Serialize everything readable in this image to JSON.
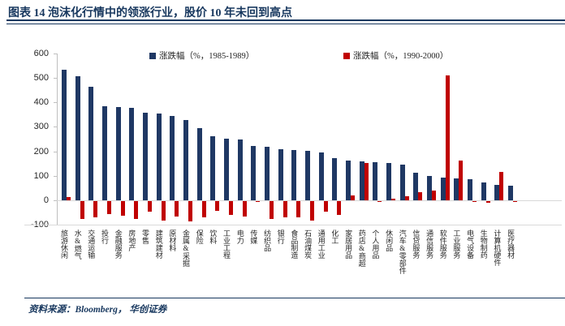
{
  "title": "图表 14  泡沫化行情中的领涨行业，股价 10 年未回到高点",
  "source": "资料来源：Bloomberg， 华创证券",
  "colors": {
    "series1": "#1f3864",
    "series2": "#c00000",
    "title_navy": "#17375e",
    "axis_gray": "#bfbfbf",
    "gridline_gray": "#d9d9d9",
    "text": "#262626"
  },
  "chart_data": {
    "type": "bar",
    "title": "",
    "xlabel": "",
    "ylabel": "",
    "ylim": [
      -100,
      600
    ],
    "yticks": [
      600,
      500,
      400,
      300,
      200,
      100,
      0,
      -100
    ],
    "grid": "zero-and-bottom-line-only",
    "legend_position": "top",
    "categories": [
      "旅游休闲",
      "水&燃气",
      "交通运输",
      "投行",
      "金融服务",
      "房地产",
      "零售",
      "建筑建材",
      "原材料",
      "金属&采掘",
      "保险",
      "饮料",
      "工业工程",
      "电力",
      "传媒",
      "纺织品",
      "银行",
      "食品制造",
      "石油煤炭",
      "通用工业",
      "化工",
      "家居用品",
      "药店&商超",
      "个人用品",
      "休闲品",
      "汽车&零部件",
      "信贷服务",
      "通信服务",
      "软件服务",
      "工业服务",
      "电气设备",
      "生物制药",
      "计算机硬件",
      "医疗器材"
    ],
    "series": [
      {
        "name": "涨跌幅（%，1985-1989）",
        "color": "#1f3864",
        "values": [
          533,
          507,
          463,
          386,
          382,
          379,
          358,
          356,
          344,
          328,
          296,
          262,
          253,
          247,
          223,
          217,
          208,
          206,
          203,
          197,
          171,
          163,
          160,
          155,
          152,
          145,
          114,
          99,
          91,
          90,
          85,
          73,
          62,
          60
        ]
      },
      {
        "name": "涨跌幅（%，1990-2000）",
        "color": "#c00000",
        "values": [
          14,
          -75,
          -68,
          -54,
          -60,
          -75,
          -43,
          -79,
          -63,
          -82,
          -66,
          -41,
          -56,
          -63,
          -2,
          -75,
          -66,
          -68,
          -80,
          -45,
          -56,
          20,
          151,
          -3,
          7,
          16,
          34,
          39,
          510,
          163,
          -3,
          -7,
          115,
          -3
        ]
      }
    ]
  },
  "layout_note": "dual-series industry bar chart, 1985-1989 vs 1990-2000 price change percent"
}
